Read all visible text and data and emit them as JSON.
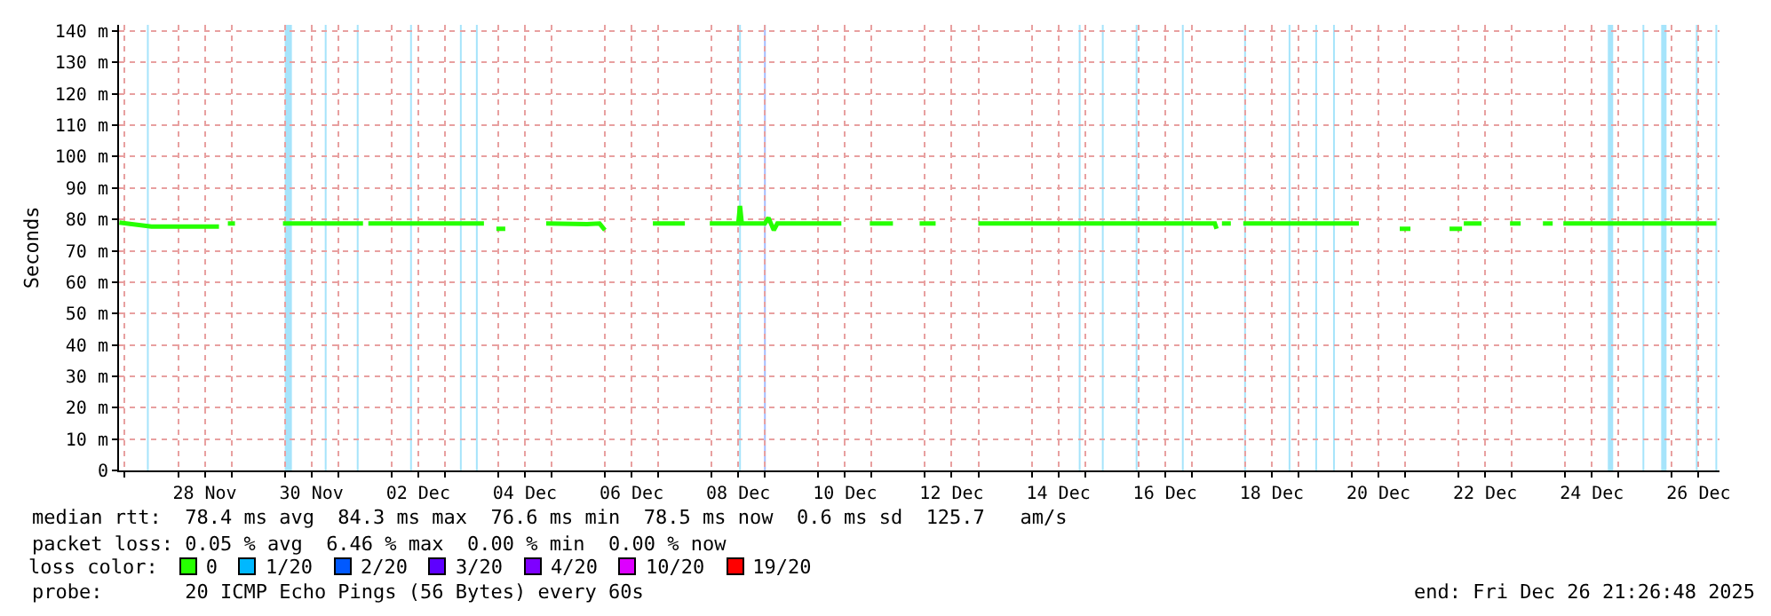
{
  "chart_data": {
    "type": "line",
    "ylabel": "Seconds",
    "legend_title": "loss color:",
    "legend": "bottom",
    "grid": true,
    "marker": "none",
    "line_style": "solid",
    "xlim": [
      "2025-11-26T21:26",
      "2025-12-26T21:26"
    ],
    "ylim": [
      0,
      142
    ],
    "yticks": [
      0,
      {
        "value": 10,
        "label": "10 m"
      },
      {
        "value": 20,
        "label": "20 m"
      },
      {
        "value": 30,
        "label": "30 m"
      },
      {
        "value": 40,
        "label": "40 m"
      },
      {
        "value": 50,
        "label": "50 m"
      },
      {
        "value": 60,
        "label": "60 m"
      },
      {
        "value": 70,
        "label": "70 m"
      },
      {
        "value": 80,
        "label": "80 m"
      },
      {
        "value": 90,
        "label": "90 m"
      },
      {
        "value": 100,
        "label": "100 m"
      },
      {
        "value": 110,
        "label": "110 m"
      },
      {
        "value": 120,
        "label": "120 m"
      },
      {
        "value": 130,
        "label": "130 m"
      },
      {
        "value": 140,
        "label": "140 m"
      }
    ],
    "xticks": [
      {
        "value": "2025-11-28T12:00",
        "label": "28 Nov"
      },
      {
        "value": "2025-11-30T12:00",
        "label": "30 Nov"
      },
      {
        "value": "2025-12-02T12:00",
        "label": "02 Dec"
      },
      {
        "value": "2025-12-04T12:00",
        "label": "04 Dec"
      },
      {
        "value": "2025-12-06T12:00",
        "label": "06 Dec"
      },
      {
        "value": "2025-12-08T12:00",
        "label": "08 Dec"
      },
      {
        "value": "2025-12-10T12:00",
        "label": "10 Dec"
      },
      {
        "value": "2025-12-12T12:00",
        "label": "12 Dec"
      },
      {
        "value": "2025-12-14T12:00",
        "label": "14 Dec"
      },
      {
        "value": "2025-12-16T12:00",
        "label": "16 Dec"
      },
      {
        "value": "2025-12-18T12:00",
        "label": "18 Dec"
      },
      {
        "value": "2025-12-20T12:00",
        "label": "20 Dec"
      },
      {
        "value": "2025-12-22T12:00",
        "label": "22 Dec"
      },
      {
        "value": "2025-12-24T12:00",
        "label": "24 Dec"
      },
      {
        "value": "2025-12-26T12:00",
        "label": "26 Dec"
      },
      {
        "value": "2025-11-27",
        "label": null
      },
      {
        "value": "2025-11-28",
        "label": null
      },
      {
        "value": "2025-11-29",
        "label": null
      },
      {
        "value": "2025-11-30",
        "label": null
      },
      {
        "value": "2025-12-01",
        "label": null
      },
      {
        "value": "2025-12-02",
        "label": null
      },
      {
        "value": "2025-12-03",
        "label": null
      },
      {
        "value": "2025-12-04",
        "label": null
      },
      {
        "value": "2025-12-05",
        "label": null
      },
      {
        "value": "2025-12-06",
        "label": null
      },
      {
        "value": "2025-12-07",
        "label": null
      },
      {
        "value": "2025-12-08",
        "label": null
      },
      {
        "value": "2025-12-09",
        "label": null
      },
      {
        "value": "2025-12-10",
        "label": null
      },
      {
        "value": "2025-12-11",
        "label": null
      },
      {
        "value": "2025-12-12",
        "label": null
      },
      {
        "value": "2025-12-13",
        "label": null
      },
      {
        "value": "2025-12-14",
        "label": null
      },
      {
        "value": "2025-12-15",
        "label": null
      },
      {
        "value": "2025-12-16",
        "label": null
      },
      {
        "value": "2025-12-17",
        "label": null
      },
      {
        "value": "2025-12-18",
        "label": null
      },
      {
        "value": "2025-12-19",
        "label": null
      },
      {
        "value": "2025-12-20",
        "label": null
      },
      {
        "value": "2025-12-21",
        "label": null
      },
      {
        "value": "2025-12-22",
        "label": null
      },
      {
        "value": "2025-12-23",
        "label": null
      },
      {
        "value": "2025-12-24",
        "label": null
      },
      {
        "value": "2025-12-25",
        "label": null
      },
      {
        "value": "2025-12-26",
        "label": null
      }
    ],
    "series": [
      {
        "name": "0",
        "color": "#26ff00",
        "x": [
          "2025-11-26T21:36",
          "2025-11-27T12:00",
          "2025-11-28T18:24",
          "2025-11-28T20:00",
          "2025-11-28T22:24",
          "2025-11-29T01:36",
          "2025-11-29T12:00",
          "2025-11-29T23:12",
          "2025-12-01T11:12",
          "2025-12-01T12:24",
          "2025-12-01T13:36",
          "2025-12-03T17:36",
          "2025-12-03T20:00",
          "2025-12-03T23:12",
          "2025-12-04T03:12",
          "2025-12-04T12:00",
          "2025-12-04T21:36",
          "2025-12-05T16:00",
          "2025-12-05T21:36",
          "2025-12-06T00:00",
          "2025-12-06T12:00",
          "2025-12-06T21:36",
          "2025-12-07T12:00",
          "2025-12-07T18:00",
          "2025-12-07T23:12",
          "2025-12-08T12:00",
          "2025-12-08T12:48",
          "2025-12-08T13:36",
          "2025-12-09T00:00",
          "2025-12-09T01:36",
          "2025-12-09T04:00",
          "2025-12-09T05:36",
          "2025-12-10T10:24",
          "2025-12-10T18:00",
          "2025-12-10T23:12",
          "2025-12-11T09:36",
          "2025-12-11T16:00",
          "2025-12-11T21:36",
          "2025-12-12T04:48",
          "2025-12-12T14:00",
          "2025-12-13T00:00",
          "2025-12-17T10:24",
          "2025-12-17T11:12",
          "2025-12-17T12:48",
          "2025-12-17T13:36",
          "2025-12-17T17:36",
          "2025-12-17T20:00",
          "2025-12-17T23:12",
          "2025-12-20T03:12",
          "2025-12-20T12:00",
          "2025-12-20T21:36",
          "2025-12-21T02:24",
          "2025-12-21T12:00",
          "2025-12-21T20:00",
          "2025-12-22T01:36",
          "2025-12-22T02:00",
          "2025-12-22T02:24",
          "2025-12-22T10:24",
          "2025-12-22T18:00",
          "2025-12-22T23:12",
          "2025-12-23T04:00",
          "2025-12-23T09:00",
          "2025-12-23T14:00",
          "2025-12-23T18:24",
          "2025-12-23T20:00",
          "2025-12-23T23:12",
          "2025-12-26T20:00"
        ],
        "values": [
          79,
          77.7,
          77.7,
          null,
          78.7,
          78.7,
          null,
          78.7,
          78.7,
          null,
          78.7,
          78.7,
          null,
          77,
          77,
          null,
          78.7,
          78.5,
          78.7,
          76.6,
          null,
          78.7,
          78.7,
          null,
          78.7,
          78.7,
          84.3,
          78.7,
          78.7,
          80.5,
          76.6,
          78.7,
          78.7,
          null,
          78.7,
          78.7,
          null,
          78.7,
          78.7,
          null,
          78.7,
          78.7,
          77,
          null,
          78.7,
          78.7,
          null,
          78.7,
          78.7,
          null,
          77,
          77,
          null,
          77,
          77,
          null,
          78.7,
          78.7,
          null,
          78.7,
          78.7,
          null,
          78.7,
          78.7,
          null,
          78.7,
          78.7
        ]
      },
      {
        "name": "1/20",
        "color": "#00b8ff"
      },
      {
        "name": "2/20",
        "color": "#0059ff"
      },
      {
        "name": "3/20",
        "color": "#5e00ff"
      },
      {
        "name": "4/20",
        "color": "#7e00ff"
      },
      {
        "name": "10/20",
        "color": "#dd00ff"
      },
      {
        "name": "19/20",
        "color": "#ff0000"
      }
    ],
    "bands": [
      {
        "axis": "x",
        "from": "2025-11-27T10:00",
        "to": "2025-11-27T10:48",
        "color": "#a6e4fb"
      },
      {
        "axis": "x",
        "from": "2025-11-30T00:00",
        "to": "2025-11-30T03:12",
        "color": "#a6e4fb"
      },
      {
        "axis": "x",
        "from": "2025-11-30T18:00",
        "to": "2025-11-30T18:48",
        "color": "#a6e4fb"
      },
      {
        "axis": "x",
        "from": "2025-12-01T08:24",
        "to": "2025-12-01T09:12",
        "color": "#a6e4fb"
      },
      {
        "axis": "x",
        "from": "2025-12-02T08:24",
        "to": "2025-12-02T09:12",
        "color": "#a6e4fb"
      },
      {
        "axis": "x",
        "from": "2025-12-03T06:48",
        "to": "2025-12-03T07:36",
        "color": "#a6e4fb"
      },
      {
        "axis": "x",
        "from": "2025-12-03T14:00",
        "to": "2025-12-03T14:48",
        "color": "#a6e4fb"
      },
      {
        "axis": "x",
        "from": "2025-12-08T12:24",
        "to": "2025-12-08T13:12",
        "color": "#a6e4fb"
      },
      {
        "axis": "x",
        "from": "2025-12-08T23:36",
        "to": "2025-12-09T00:24",
        "color": "#a4bcff"
      },
      {
        "axis": "x",
        "from": "2025-12-14T21:12",
        "to": "2025-12-14T22:00",
        "color": "#a6e4fb"
      },
      {
        "axis": "x",
        "from": "2025-12-15T07:36",
        "to": "2025-12-15T08:24",
        "color": "#a6e4fb"
      },
      {
        "axis": "x",
        "from": "2025-12-15T22:48",
        "to": "2025-12-15T23:36",
        "color": "#a6e4fb"
      },
      {
        "axis": "x",
        "from": "2025-12-16T19:36",
        "to": "2025-12-16T20:24",
        "color": "#a6e4fb"
      },
      {
        "axis": "x",
        "from": "2025-12-17T23:36",
        "to": "2025-12-18T00:24",
        "color": "#a6e4fb"
      },
      {
        "axis": "x",
        "from": "2025-12-18T19:36",
        "to": "2025-12-18T20:24",
        "color": "#a6e4fb"
      },
      {
        "axis": "x",
        "from": "2025-12-19T07:36",
        "to": "2025-12-19T08:24",
        "color": "#a6e4fb"
      },
      {
        "axis": "x",
        "from": "2025-12-19T15:36",
        "to": "2025-12-19T16:24",
        "color": "#a6e4fb"
      },
      {
        "axis": "x",
        "from": "2025-12-24T19:12",
        "to": "2025-12-24T21:36",
        "color": "#a6e4fb"
      },
      {
        "axis": "x",
        "from": "2025-12-25T10:48",
        "to": "2025-12-25T11:36",
        "color": "#a6e4fb"
      },
      {
        "axis": "x",
        "from": "2025-12-25T19:12",
        "to": "2025-12-25T21:36",
        "color": "#a6e4fb"
      },
      {
        "axis": "x",
        "from": "2025-12-26T10:48",
        "to": "2025-12-26T11:36",
        "color": "#a6e4fb"
      },
      {
        "axis": "x",
        "from": "2025-12-26T19:36",
        "to": "2025-12-26T20:24",
        "color": "#a6e4fb"
      }
    ],
    "annotations": [
      "median rtt:  78.4 ms avg  84.3 ms max  76.6 ms min  78.5 ms now  0.6 ms sd  125.7   am/s",
      "packet loss: 0.05 % avg  6.46 % max  0.00 % min  0.00 % now",
      "probe:       20 ICMP Echo Pings (56 Bytes) every 60s",
      "end: Fri Dec 26 21:26:48 2025"
    ]
  }
}
